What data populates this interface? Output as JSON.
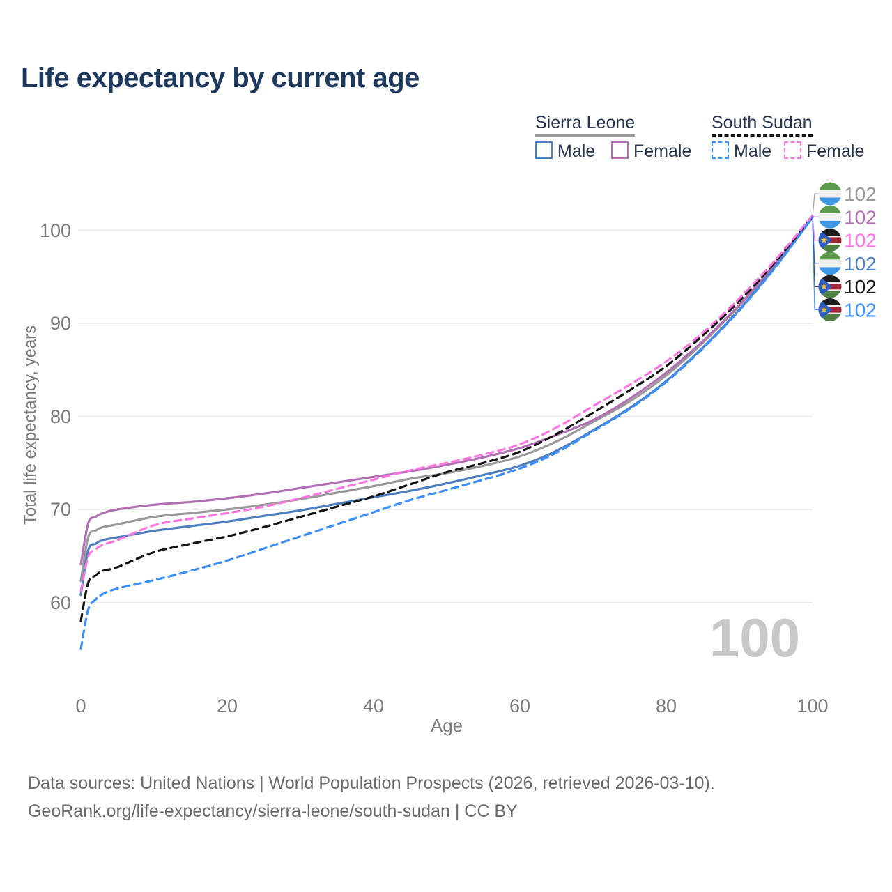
{
  "title": "Life expectancy by current age",
  "legend": {
    "groups": [
      {
        "label": "Sierra Leone",
        "line_style": "solid",
        "underline_color": "#9a9a9a",
        "items": [
          {
            "label": "Male",
            "color": "#4f7fbe",
            "dashed": false
          },
          {
            "label": "Female",
            "color": "#b170b1",
            "dashed": false
          }
        ]
      },
      {
        "label": "South Sudan",
        "line_style": "dashed",
        "underline_color": "#141414",
        "items": [
          {
            "label": "Male",
            "color": "#3d8ffd",
            "dashed": true
          },
          {
            "label": "Female",
            "color": "#fc77e2",
            "dashed": true
          }
        ]
      }
    ]
  },
  "chart_data": {
    "type": "line",
    "title": "Life expectancy by current age",
    "xlabel": "Age",
    "ylabel": "Total life expectancy, years",
    "xlim": [
      0,
      100
    ],
    "ylim": [
      55,
      103
    ],
    "xticks": [
      "0",
      "20",
      "40",
      "60",
      "80",
      "100"
    ],
    "yticks": [
      "60",
      "70",
      "80",
      "90",
      "100"
    ],
    "grid": "horizontal-only",
    "legend_position": "top-right",
    "age_cursor_watermark": "100",
    "x": [
      0,
      1,
      2,
      3,
      5,
      10,
      15,
      20,
      25,
      30,
      35,
      40,
      45,
      50,
      55,
      60,
      65,
      70,
      75,
      80,
      85,
      90,
      95,
      100
    ],
    "series": [
      {
        "id": "sierra-leone-both",
        "country": "Sierra Leone",
        "sex": "Both",
        "color": "#9a9a9a",
        "dashed": false,
        "flag": "sierra-leone",
        "end_label": "102",
        "label_row": 0,
        "values": [
          62.3,
          67.0,
          67.7,
          68.1,
          68.4,
          69.2,
          69.6,
          70.0,
          70.5,
          71.1,
          71.8,
          72.5,
          73.3,
          73.9,
          74.7,
          75.7,
          77.3,
          79.4,
          81.6,
          84.4,
          87.9,
          91.9,
          96.4,
          101.5
        ]
      },
      {
        "id": "sierra-leone-female",
        "country": "Sierra Leone",
        "sex": "Female",
        "color": "#b170b1",
        "dashed": false,
        "flag": "sierra-leone",
        "end_label": "102",
        "label_row": 1,
        "values": [
          64.1,
          68.5,
          69.2,
          69.6,
          70.0,
          70.5,
          70.8,
          71.2,
          71.7,
          72.3,
          72.9,
          73.5,
          74.1,
          74.8,
          75.6,
          76.6,
          78.0,
          79.6,
          81.9,
          84.7,
          88.1,
          92.0,
          96.5,
          101.5
        ]
      },
      {
        "id": "sierra-leone-male",
        "country": "Sierra Leone",
        "sex": "Male",
        "color": "#4f7fbe",
        "dashed": false,
        "flag": "sierra-leone",
        "end_label": "102",
        "label_row": 3,
        "values": [
          60.8,
          65.6,
          66.3,
          66.7,
          67.0,
          67.7,
          68.2,
          68.7,
          69.3,
          69.9,
          70.6,
          71.3,
          72.0,
          72.8,
          73.7,
          74.7,
          76.3,
          78.5,
          80.9,
          83.8,
          87.4,
          91.5,
          96.2,
          101.4
        ]
      },
      {
        "id": "south-sudan-both",
        "country": "South Sudan",
        "sex": "Both",
        "color": "#141414",
        "dashed": true,
        "flag": "south-sudan",
        "end_label": "102",
        "label_row": 4,
        "values": [
          58.0,
          62.1,
          62.9,
          63.4,
          63.8,
          65.4,
          66.3,
          67.1,
          68.1,
          69.2,
          70.3,
          71.4,
          72.7,
          74.0,
          75.0,
          76.2,
          78.1,
          80.4,
          82.8,
          85.4,
          88.7,
          92.4,
          96.7,
          101.5
        ]
      },
      {
        "id": "south-sudan-female",
        "country": "South Sudan",
        "sex": "Female",
        "color": "#fc77e2",
        "dashed": true,
        "flag": "south-sudan",
        "end_label": "102",
        "label_row": 2,
        "values": [
          61.2,
          64.9,
          65.7,
          66.2,
          66.7,
          68.3,
          69.0,
          69.6,
          70.3,
          71.2,
          72.2,
          73.2,
          74.2,
          75.0,
          75.9,
          77.0,
          78.8,
          81.1,
          83.4,
          85.9,
          89.0,
          92.7,
          96.9,
          101.6
        ]
      },
      {
        "id": "south-sudan-male",
        "country": "South Sudan",
        "sex": "Male",
        "color": "#3d8ffd",
        "dashed": true,
        "flag": "south-sudan",
        "end_label": "102",
        "label_row": 5,
        "values": [
          55.0,
          59.2,
          60.3,
          60.9,
          61.5,
          62.4,
          63.4,
          64.5,
          65.8,
          67.1,
          68.4,
          69.7,
          71.0,
          72.1,
          73.2,
          74.4,
          76.1,
          78.4,
          80.8,
          83.7,
          87.3,
          91.4,
          96.1,
          101.4
        ]
      }
    ],
    "flag_colors": {
      "sierra_leone": {
        "green": "#5a9a4a",
        "white": "#f1f1f1",
        "blue": "#3d98ea"
      },
      "south_sudan": {
        "black": "#1c1c1c",
        "red": "#9f2633",
        "green": "#4e8040",
        "white": "#f1f1f1",
        "triangle_blue": "#2f5dc6",
        "star_yellow": "#f2c12e"
      }
    }
  },
  "footer": {
    "line1": "Data sources: United Nations | World Population Prospects (2026, retrieved 2026-03-10).",
    "line2": "GeoRank.org/life-expectancy/sierra-leone/south-sudan | CC BY"
  }
}
